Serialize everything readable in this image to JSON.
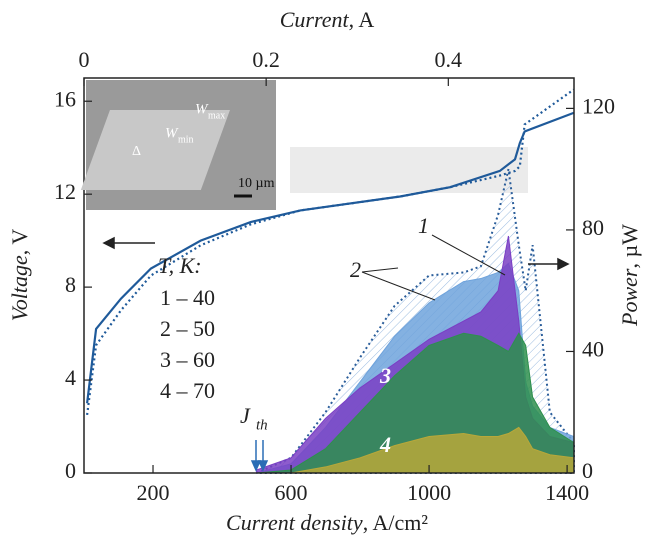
{
  "chart_data": {
    "type": "area",
    "top_label": {
      "name": "Current",
      "unit": ", A"
    },
    "x_label": {
      "name": "Current density",
      "unit": ", A/cm²"
    },
    "y_label": {
      "name": "Voltage",
      "unit": ", V"
    },
    "y2_label": {
      "name": "Power",
      "unit": ", µW"
    },
    "xlim": [
      0,
      1420
    ],
    "xticks": [
      200,
      600,
      1000,
      1400
    ],
    "x2lim": [
      0,
      0.538
    ],
    "x2ticks": [
      0,
      0.2,
      0.4
    ],
    "ylim": [
      0,
      17
    ],
    "yticks": [
      0,
      4,
      8,
      12,
      16
    ],
    "y2lim": [
      0,
      130
    ],
    "y2ticks": [
      0,
      40,
      80,
      120
    ],
    "voltage": {
      "color": "#1f5a9a",
      "x": [
        9,
        35,
        107,
        194,
        338,
        483,
        627,
        916,
        1061,
        1205,
        1249,
        1263,
        1277,
        1419
      ],
      "values": [
        3,
        6.2,
        7.5,
        8.8,
        10,
        10.8,
        11.3,
        11.9,
        12.3,
        13,
        13.5,
        14.2,
        14.7,
        15.5
      ],
      "dotted_values": [
        2.5,
        5.5,
        7,
        8.5,
        9.8,
        10.7,
        11.3,
        11.9,
        12.3,
        12.8,
        13,
        13.2,
        15,
        16.5
      ]
    },
    "power_x": [
      500,
      600,
      700,
      800,
      900,
      1000,
      1100,
      1150,
      1200,
      1230,
      1260,
      1280,
      1300,
      1350,
      1420
    ],
    "power_envelope": [
      0,
      5,
      20,
      38,
      55,
      65,
      66,
      68,
      85,
      100,
      75,
      60,
      75,
      20,
      10
    ],
    "series": [
      {
        "name": "2",
        "color": "#6fa3dc",
        "axis": "y2",
        "values": [
          0,
          3,
          15,
          30,
          45,
          56,
          63,
          64,
          66,
          69,
          60,
          30,
          22,
          15,
          12
        ]
      },
      {
        "name": "1",
        "color": "#7a3fc4",
        "axis": "y2",
        "values": [
          1,
          5,
          18,
          28,
          36,
          44,
          50,
          53,
          60,
          78,
          50,
          25,
          18,
          12,
          10
        ]
      },
      {
        "name": "3",
        "color": "#2e8f4e",
        "axis": "y2",
        "values": [
          0,
          1,
          8,
          20,
          32,
          42,
          46,
          45,
          42,
          40,
          46,
          42,
          25,
          15,
          10
        ]
      },
      {
        "name": "4",
        "color": "#b8a83a",
        "axis": "y2",
        "values": [
          0,
          0,
          2,
          5,
          9,
          12,
          13,
          12,
          12,
          13,
          15,
          12,
          8,
          6,
          5
        ]
      }
    ],
    "legend_title": "T, K:",
    "legend": [
      "1 – 40",
      "2 – 50",
      "3 – 60",
      "4 – 70"
    ],
    "jth_label": {
      "name": "J",
      "sub": "th"
    },
    "inset": {
      "w_max": "W",
      "w_max_sub": "max",
      "w_min": "W",
      "w_min_sub": "min",
      "delta": "Δ",
      "scale": "10 µm"
    }
  }
}
